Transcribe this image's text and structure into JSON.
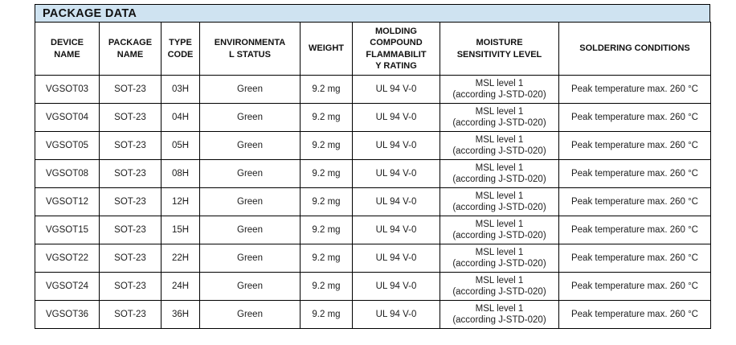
{
  "title": "PACKAGE DATA",
  "colors": {
    "title_background": "#cfe3f1",
    "border": "#000000",
    "text": "#1c1c1c"
  },
  "table": {
    "columns": [
      {
        "label": "DEVICE\nNAME"
      },
      {
        "label": "PACKAGE\nNAME"
      },
      {
        "label": "TYPE\nCODE"
      },
      {
        "label": "ENVIRONMENTA\nL STATUS"
      },
      {
        "label": "WEIGHT"
      },
      {
        "label": "MOLDING\nCOMPOUND\nFLAMMABILIT\nY RATING"
      },
      {
        "label": "MOISTURE\nSENSITIVITY LEVEL"
      },
      {
        "label": "SOLDERING CONDITIONS"
      }
    ],
    "rows": [
      {
        "device": "VGSOT03",
        "pkg": "SOT-23",
        "type": "03H",
        "env": "Green",
        "weight": "9.2 mg",
        "flamm": "UL 94 V-0",
        "msl": "MSL level 1\n(according J-STD-020)",
        "solder": "Peak temperature max. 260 °C"
      },
      {
        "device": "VGSOT04",
        "pkg": "SOT-23",
        "type": "04H",
        "env": "Green",
        "weight": "9.2 mg",
        "flamm": "UL 94 V-0",
        "msl": "MSL level 1\n(according J-STD-020)",
        "solder": "Peak temperature max. 260 °C"
      },
      {
        "device": "VGSOT05",
        "pkg": "SOT-23",
        "type": "05H",
        "env": "Green",
        "weight": "9.2 mg",
        "flamm": "UL 94 V-0",
        "msl": "MSL level 1\n(according J-STD-020)",
        "solder": "Peak temperature max. 260 °C"
      },
      {
        "device": "VGSOT08",
        "pkg": "SOT-23",
        "type": "08H",
        "env": "Green",
        "weight": "9.2 mg",
        "flamm": "UL 94 V-0",
        "msl": "MSL level 1\n(according J-STD-020)",
        "solder": "Peak temperature max. 260 °C"
      },
      {
        "device": "VGSOT12",
        "pkg": "SOT-23",
        "type": "12H",
        "env": "Green",
        "weight": "9.2 mg",
        "flamm": "UL 94 V-0",
        "msl": "MSL level 1\n(according J-STD-020)",
        "solder": "Peak temperature max. 260 °C"
      },
      {
        "device": "VGSOT15",
        "pkg": "SOT-23",
        "type": "15H",
        "env": "Green",
        "weight": "9.2 mg",
        "flamm": "UL 94 V-0",
        "msl": "MSL level 1\n(according J-STD-020)",
        "solder": "Peak temperature max. 260 °C"
      },
      {
        "device": "VGSOT22",
        "pkg": "SOT-23",
        "type": "22H",
        "env": "Green",
        "weight": "9.2 mg",
        "flamm": "UL 94 V-0",
        "msl": "MSL level 1\n(according J-STD-020)",
        "solder": "Peak temperature max. 260 °C"
      },
      {
        "device": "VGSOT24",
        "pkg": "SOT-23",
        "type": "24H",
        "env": "Green",
        "weight": "9.2 mg",
        "flamm": "UL 94 V-0",
        "msl": "MSL level 1\n(according J-STD-020)",
        "solder": "Peak temperature max. 260 °C"
      },
      {
        "device": "VGSOT36",
        "pkg": "SOT-23",
        "type": "36H",
        "env": "Green",
        "weight": "9.2 mg",
        "flamm": "UL 94 V-0",
        "msl": "MSL level 1\n(according J-STD-020)",
        "solder": "Peak temperature max. 260 °C"
      }
    ]
  }
}
